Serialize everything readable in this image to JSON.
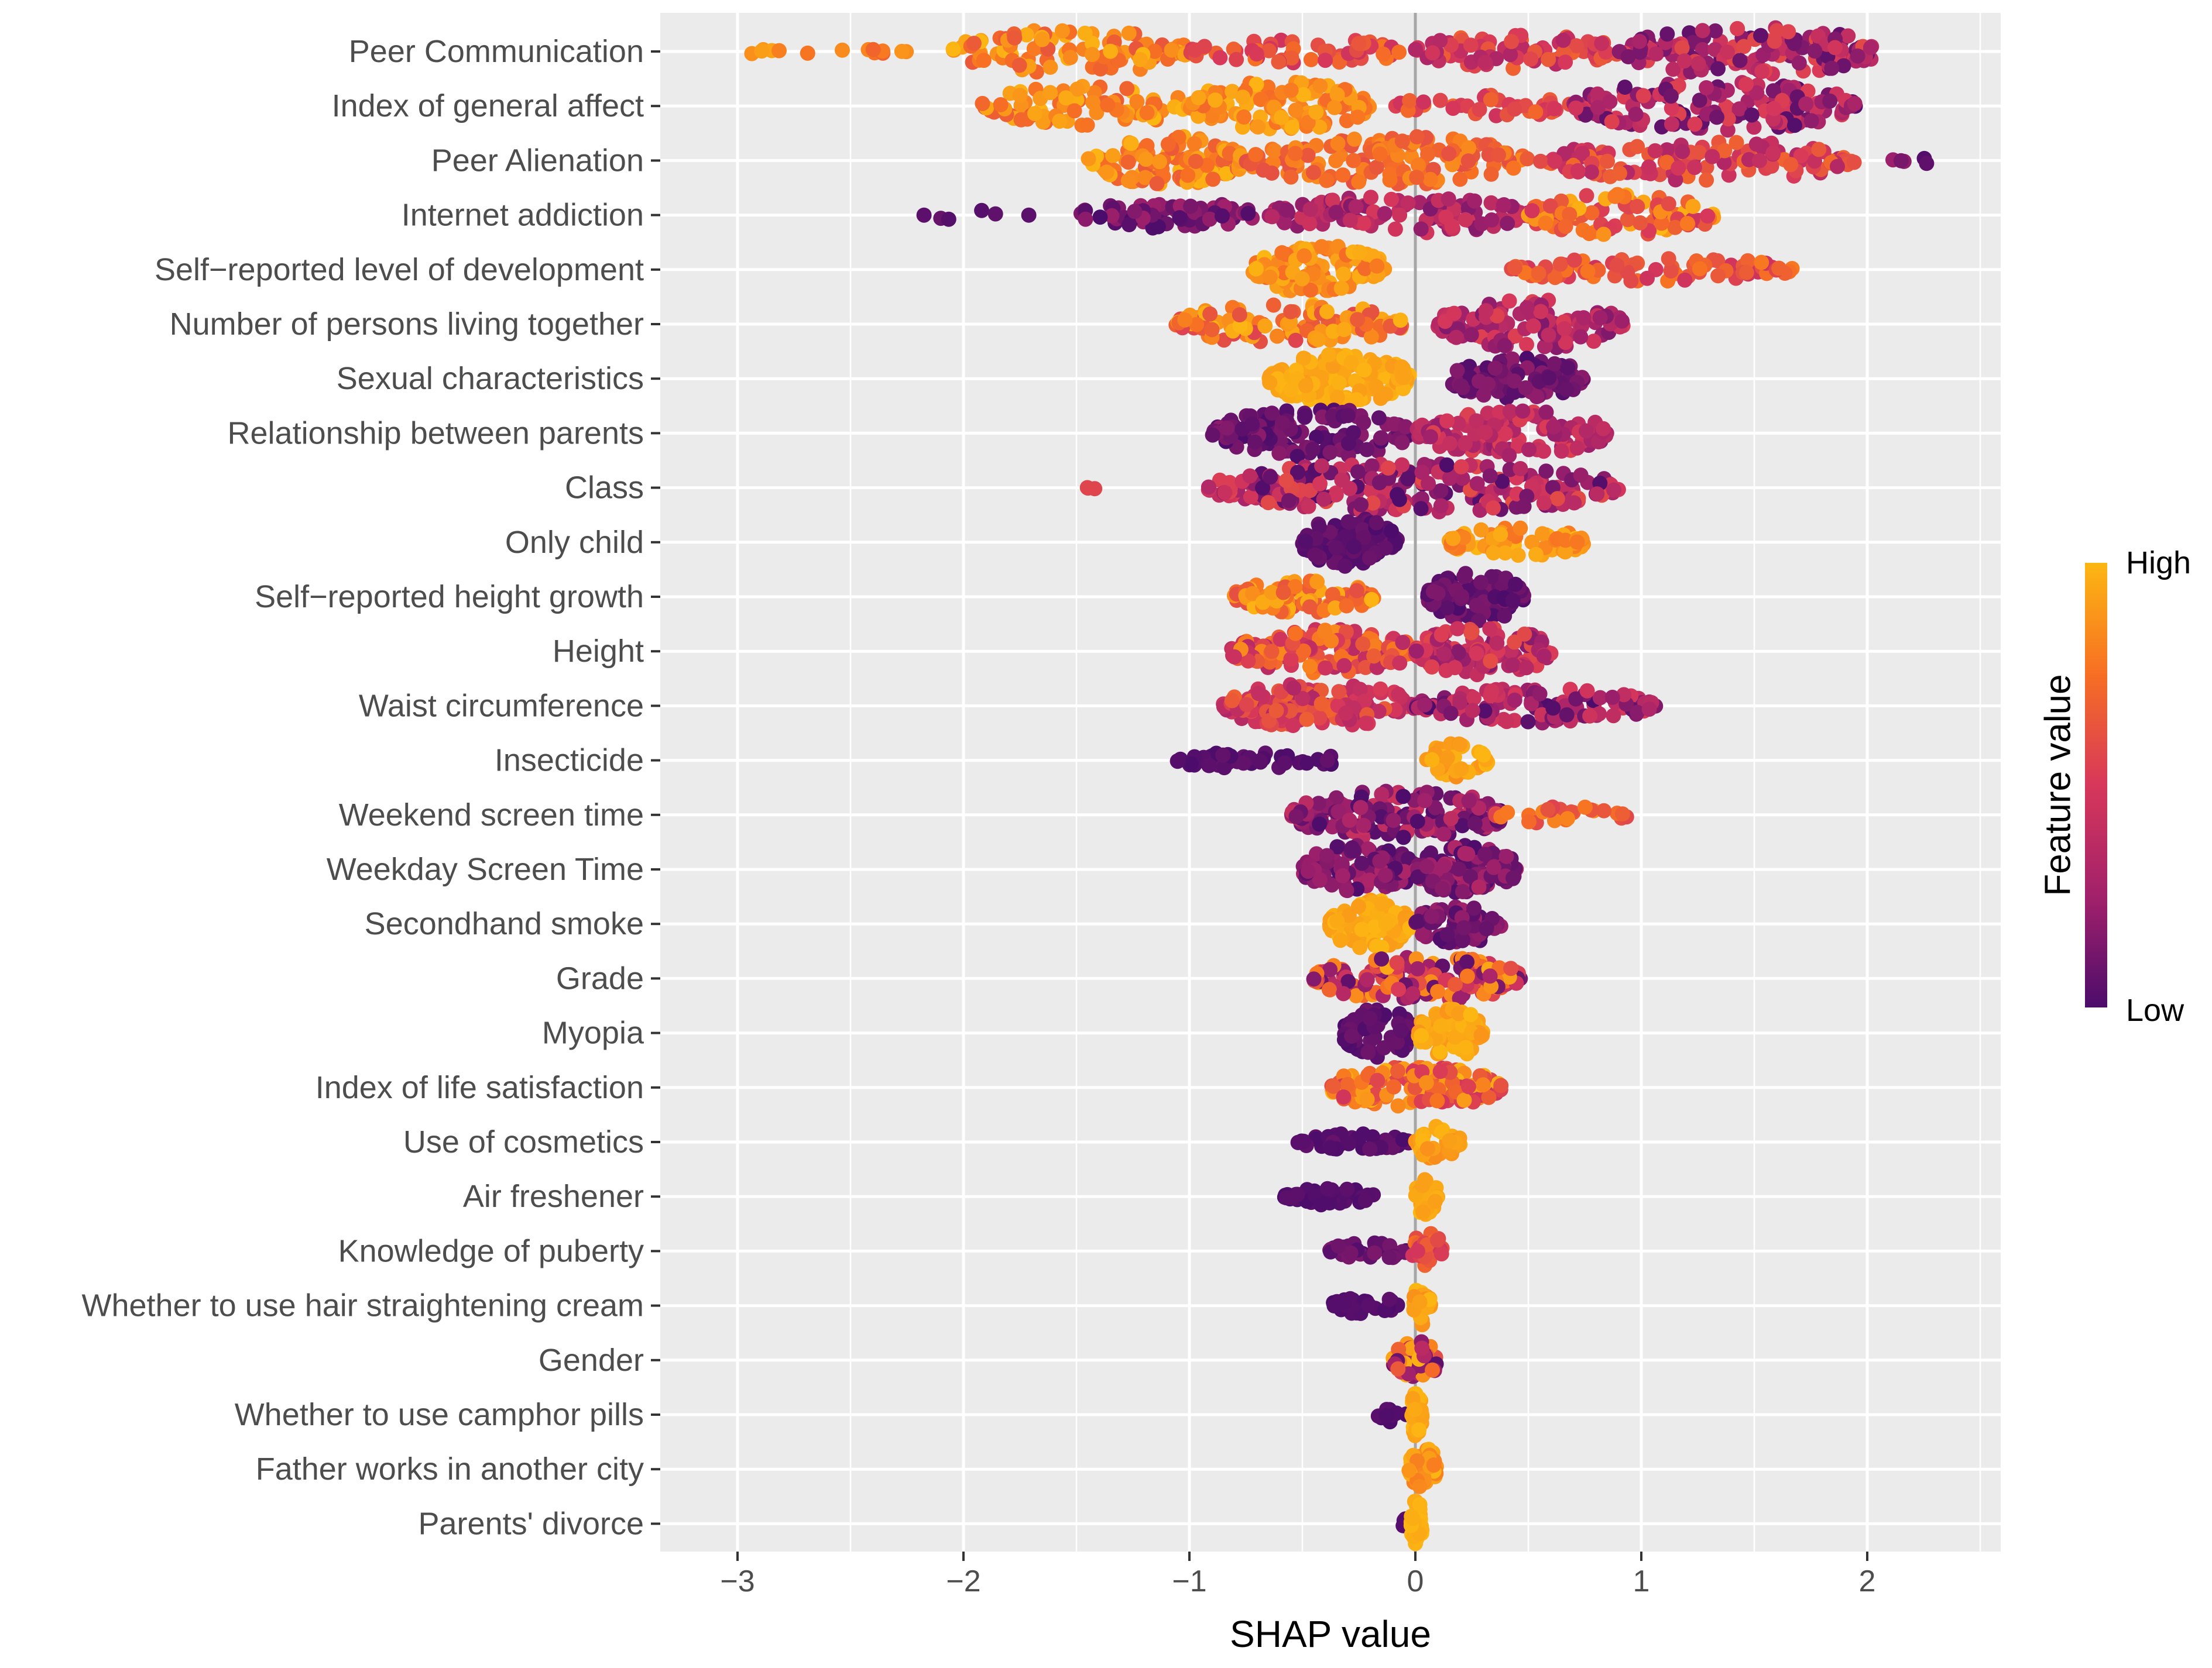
{
  "colors": {
    "panel_bg": "#EBEBEB",
    "grid_major": "#FFFFFF",
    "zero_line": "#A6A6A6",
    "low": "#4C0C6B",
    "mid": "#D7375A",
    "mid_high": "#F76F23",
    "high": "#FCB712"
  },
  "chart_data": {
    "type": "scatter",
    "subtype": "shap-beeswarm",
    "title": "",
    "xlabel": "SHAP value",
    "ylabel": "",
    "xlim": [
      -3.3,
      2.6
    ],
    "x_ticks": [
      -3,
      -2,
      -1,
      0,
      1,
      2
    ],
    "x_tick_labels": [
      "−3",
      "−2",
      "−1",
      "0",
      "1",
      "2"
    ],
    "grid": true,
    "zero_reference_line": 0,
    "color_scale": {
      "title": "Feature value",
      "high_label": "High",
      "low_label": "Low",
      "placement": "right",
      "stops": [
        "#4C0C6B",
        "#A2216B",
        "#D7375A",
        "#F76F23",
        "#FCB712"
      ]
    },
    "features": [
      {
        "name": "Peer Communication",
        "clusters": [
          {
            "x_min": -3.08,
            "x_max": -2.25,
            "spread": 0.15,
            "n": 14,
            "v_min": 0.66,
            "v_max": 0.95
          },
          {
            "x_min": -2.05,
            "x_max": -1.0,
            "spread": 0.9,
            "n": 110,
            "v_min": 0.62,
            "v_max": 1.0
          },
          {
            "x_min": -1.0,
            "x_max": -0.05,
            "spread": 0.55,
            "n": 60,
            "v_min": 0.45,
            "v_max": 0.78
          },
          {
            "x_min": 0.0,
            "x_max": 0.9,
            "spread": 0.7,
            "n": 80,
            "v_min": 0.3,
            "v_max": 0.7
          },
          {
            "x_min": 0.9,
            "x_max": 2.05,
            "spread": 1.0,
            "n": 150,
            "v_min": 0.05,
            "v_max": 0.6
          }
        ]
      },
      {
        "name": "Index of general affect",
        "clusters": [
          {
            "x_min": -1.92,
            "x_max": -1.0,
            "spread": 0.8,
            "n": 80,
            "v_min": 0.65,
            "v_max": 1.0
          },
          {
            "x_min": -1.0,
            "x_max": -0.2,
            "spread": 1.0,
            "n": 120,
            "v_min": 0.72,
            "v_max": 1.0
          },
          {
            "x_min": -0.1,
            "x_max": 0.7,
            "spread": 0.45,
            "n": 40,
            "v_min": 0.45,
            "v_max": 0.72
          },
          {
            "x_min": 0.7,
            "x_max": 1.95,
            "spread": 1.0,
            "n": 150,
            "v_min": 0.02,
            "v_max": 0.55
          }
        ]
      },
      {
        "name": "Peer Alienation",
        "clusters": [
          {
            "x_min": -1.45,
            "x_max": -0.75,
            "spread": 1.0,
            "n": 120,
            "v_min": 0.65,
            "v_max": 1.0
          },
          {
            "x_min": -0.75,
            "x_max": 0.5,
            "spread": 1.0,
            "n": 140,
            "v_min": 0.6,
            "v_max": 0.85
          },
          {
            "x_min": 0.55,
            "x_max": 1.95,
            "spread": 0.8,
            "n": 130,
            "v_min": 0.3,
            "v_max": 0.72
          },
          {
            "x_min": 2.1,
            "x_max": 2.3,
            "spread": 0.15,
            "n": 5,
            "v_min": 0.0,
            "v_max": 0.25
          }
        ]
      },
      {
        "name": "Internet addiction",
        "clusters": [
          {
            "x_min": -2.2,
            "x_max": -1.7,
            "spread": 0.2,
            "n": 6,
            "v_min": 0.0,
            "v_max": 0.1
          },
          {
            "x_min": -1.5,
            "x_max": -0.7,
            "spread": 0.55,
            "n": 60,
            "v_min": 0.0,
            "v_max": 0.25
          },
          {
            "x_min": -0.65,
            "x_max": 0.5,
            "spread": 0.75,
            "n": 110,
            "v_min": 0.15,
            "v_max": 0.5
          },
          {
            "x_min": 0.5,
            "x_max": 1.32,
            "spread": 0.9,
            "n": 90,
            "v_min": 0.45,
            "v_max": 1.0
          }
        ]
      },
      {
        "name": "Self−reported level of development",
        "clusters": [
          {
            "x_min": -0.72,
            "x_max": -0.13,
            "spread": 1.0,
            "n": 110,
            "v_min": 0.72,
            "v_max": 1.0
          },
          {
            "x_min": 0.42,
            "x_max": 1.67,
            "spread": 0.5,
            "n": 80,
            "v_min": 0.45,
            "v_max": 0.78
          }
        ]
      },
      {
        "name": "Number of persons living together",
        "clusters": [
          {
            "x_min": -1.07,
            "x_max": -0.05,
            "spread": 0.85,
            "n": 120,
            "v_min": 0.55,
            "v_max": 1.0
          },
          {
            "x_min": 0.1,
            "x_max": 0.92,
            "spread": 1.0,
            "n": 110,
            "v_min": 0.15,
            "v_max": 0.55
          }
        ]
      },
      {
        "name": "Sexual characteristics",
        "clusters": [
          {
            "x_min": -0.65,
            "x_max": -0.02,
            "spread": 1.0,
            "n": 150,
            "v_min": 0.9,
            "v_max": 1.0
          },
          {
            "x_min": 0.15,
            "x_max": 0.75,
            "spread": 0.85,
            "n": 110,
            "v_min": 0.0,
            "v_max": 0.2
          }
        ]
      },
      {
        "name": "Relationship between parents",
        "clusters": [
          {
            "x_min": -0.9,
            "x_max": -0.02,
            "spread": 1.0,
            "n": 130,
            "v_min": 0.0,
            "v_max": 0.2
          },
          {
            "x_min": 0.0,
            "x_max": 0.85,
            "spread": 0.95,
            "n": 120,
            "v_min": 0.2,
            "v_max": 0.55
          }
        ]
      },
      {
        "name": "Class",
        "clusters": [
          {
            "x_min": -1.47,
            "x_max": -1.35,
            "spread": 0.05,
            "n": 3,
            "v_min": 0.55,
            "v_max": 0.62
          },
          {
            "x_min": -0.92,
            "x_max": 0.9,
            "spread": 1.0,
            "n": 240,
            "v_min": 0.0,
            "v_max": 0.6
          }
        ]
      },
      {
        "name": "Only child",
        "clusters": [
          {
            "x_min": -0.5,
            "x_max": -0.08,
            "spread": 1.0,
            "n": 100,
            "v_min": 0.0,
            "v_max": 0.1
          },
          {
            "x_min": 0.15,
            "x_max": 0.75,
            "spread": 0.6,
            "n": 70,
            "v_min": 0.75,
            "v_max": 1.0
          }
        ]
      },
      {
        "name": "Self−reported height growth",
        "clusters": [
          {
            "x_min": -0.82,
            "x_max": -0.18,
            "spread": 0.65,
            "n": 90,
            "v_min": 0.6,
            "v_max": 1.0
          },
          {
            "x_min": 0.05,
            "x_max": 0.48,
            "spread": 1.0,
            "n": 100,
            "v_min": 0.0,
            "v_max": 0.15
          }
        ]
      },
      {
        "name": "Height",
        "clusters": [
          {
            "x_min": -0.82,
            "x_max": 0.0,
            "spread": 0.9,
            "n": 140,
            "v_min": 0.35,
            "v_max": 0.85
          },
          {
            "x_min": 0.0,
            "x_max": 0.6,
            "spread": 1.0,
            "n": 130,
            "v_min": 0.15,
            "v_max": 0.6
          }
        ]
      },
      {
        "name": "Waist circumference",
        "clusters": [
          {
            "x_min": -0.85,
            "x_max": 0.0,
            "spread": 0.9,
            "n": 130,
            "v_min": 0.3,
            "v_max": 0.7
          },
          {
            "x_min": 0.0,
            "x_max": 1.07,
            "spread": 0.7,
            "n": 120,
            "v_min": 0.0,
            "v_max": 0.5
          }
        ]
      },
      {
        "name": "Insecticide",
        "clusters": [
          {
            "x_min": -1.07,
            "x_max": -0.33,
            "spread": 0.35,
            "n": 50,
            "v_min": 0.0,
            "v_max": 0.08
          },
          {
            "x_min": 0.05,
            "x_max": 0.32,
            "spread": 0.7,
            "n": 40,
            "v_min": 0.85,
            "v_max": 1.0
          }
        ]
      },
      {
        "name": "Weekend screen time",
        "clusters": [
          {
            "x_min": -0.55,
            "x_max": 0.4,
            "spread": 1.0,
            "n": 150,
            "v_min": 0.0,
            "v_max": 0.45
          },
          {
            "x_min": 0.35,
            "x_max": 0.95,
            "spread": 0.35,
            "n": 25,
            "v_min": 0.55,
            "v_max": 0.85
          }
        ]
      },
      {
        "name": "Weekday Screen Time",
        "clusters": [
          {
            "x_min": -0.5,
            "x_max": 0.0,
            "spread": 1.0,
            "n": 110,
            "v_min": 0.0,
            "v_max": 0.3
          },
          {
            "x_min": 0.0,
            "x_max": 0.45,
            "spread": 1.0,
            "n": 110,
            "v_min": 0.0,
            "v_max": 0.35
          }
        ]
      },
      {
        "name": "Secondhand smoke",
        "clusters": [
          {
            "x_min": -0.38,
            "x_max": -0.02,
            "spread": 1.0,
            "n": 90,
            "v_min": 0.9,
            "v_max": 1.0
          },
          {
            "x_min": 0.0,
            "x_max": 0.38,
            "spread": 0.8,
            "n": 70,
            "v_min": 0.0,
            "v_max": 0.25
          }
        ]
      },
      {
        "name": "Grade",
        "clusters": [
          {
            "x_min": -0.45,
            "x_max": 0.48,
            "spread": 0.9,
            "n": 160,
            "v_min": 0.05,
            "v_max": 0.95
          }
        ]
      },
      {
        "name": "Myopia",
        "clusters": [
          {
            "x_min": -0.32,
            "x_max": -0.01,
            "spread": 1.0,
            "n": 70,
            "v_min": 0.0,
            "v_max": 0.1
          },
          {
            "x_min": 0.01,
            "x_max": 0.3,
            "spread": 1.0,
            "n": 70,
            "v_min": 0.88,
            "v_max": 1.0
          }
        ]
      },
      {
        "name": "Index of life satisfaction",
        "clusters": [
          {
            "x_min": -0.38,
            "x_max": 0.38,
            "spread": 0.85,
            "n": 150,
            "v_min": 0.45,
            "v_max": 1.0
          }
        ]
      },
      {
        "name": "Use of cosmetics",
        "clusters": [
          {
            "x_min": -0.52,
            "x_max": -0.03,
            "spread": 0.35,
            "n": 45,
            "v_min": 0.0,
            "v_max": 0.08
          },
          {
            "x_min": 0.0,
            "x_max": 0.2,
            "spread": 0.7,
            "n": 35,
            "v_min": 0.85,
            "v_max": 1.0
          }
        ]
      },
      {
        "name": "Air freshener",
        "clusters": [
          {
            "x_min": -0.58,
            "x_max": -0.18,
            "spread": 0.35,
            "n": 40,
            "v_min": 0.0,
            "v_max": 0.05
          },
          {
            "x_min": 0.0,
            "x_max": 0.1,
            "spread": 0.8,
            "n": 30,
            "v_min": 0.9,
            "v_max": 1.0
          }
        ]
      },
      {
        "name": "Knowledge of puberty",
        "clusters": [
          {
            "x_min": -0.38,
            "x_max": -0.03,
            "spread": 0.35,
            "n": 35,
            "v_min": 0.0,
            "v_max": 0.15
          },
          {
            "x_min": -0.02,
            "x_max": 0.12,
            "spread": 0.8,
            "n": 30,
            "v_min": 0.45,
            "v_max": 0.75
          }
        ]
      },
      {
        "name": "Whether to use hair straightening cream",
        "clusters": [
          {
            "x_min": -0.38,
            "x_max": -0.05,
            "spread": 0.35,
            "n": 35,
            "v_min": 0.0,
            "v_max": 0.05
          },
          {
            "x_min": -0.01,
            "x_max": 0.08,
            "spread": 0.9,
            "n": 30,
            "v_min": 0.85,
            "v_max": 1.0
          }
        ]
      },
      {
        "name": "Gender",
        "clusters": [
          {
            "x_min": -0.1,
            "x_max": 0.1,
            "spread": 0.8,
            "n": 60,
            "v_min": 0.0,
            "v_max": 1.0
          }
        ]
      },
      {
        "name": "Whether to use camphor pills",
        "clusters": [
          {
            "x_min": -0.17,
            "x_max": -0.04,
            "spread": 0.3,
            "n": 12,
            "v_min": 0.0,
            "v_max": 0.05
          },
          {
            "x_min": -0.02,
            "x_max": 0.03,
            "spread": 1.0,
            "n": 40,
            "v_min": 0.9,
            "v_max": 1.0
          }
        ]
      },
      {
        "name": "Father works in another city",
        "clusters": [
          {
            "x_min": -0.03,
            "x_max": 0.1,
            "spread": 0.9,
            "n": 40,
            "v_min": 0.8,
            "v_max": 1.0
          }
        ]
      },
      {
        "name": "Parents' divorce",
        "clusters": [
          {
            "x_min": -0.06,
            "x_max": -0.03,
            "spread": 0.2,
            "n": 4,
            "v_min": 0.0,
            "v_max": 0.05
          },
          {
            "x_min": -0.02,
            "x_max": 0.03,
            "spread": 1.0,
            "n": 40,
            "v_min": 0.95,
            "v_max": 1.0
          }
        ]
      }
    ]
  }
}
